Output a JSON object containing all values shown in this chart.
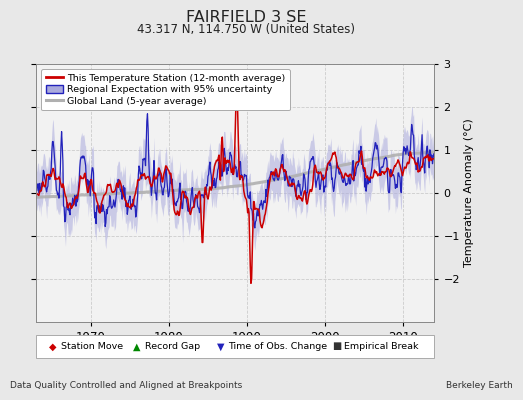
{
  "title": "FAIRFIELD 3 SE",
  "subtitle": "43.317 N, 114.750 W (United States)",
  "ylabel": "Temperature Anomaly (°C)",
  "xlabel_left": "Data Quality Controlled and Aligned at Breakpoints",
  "xlabel_right": "Berkeley Earth",
  "ylim": [
    -3,
    3
  ],
  "xlim": [
    1963,
    2014
  ],
  "xticks": [
    1970,
    1980,
    1990,
    2000,
    2010
  ],
  "yticks": [
    -2,
    -1,
    0,
    1,
    2,
    3
  ],
  "bg_color": "#e8e8e8",
  "plot_bg_color": "#f2f2f2",
  "red_color": "#cc0000",
  "blue_color": "#2222bb",
  "blue_fill_color": "#aaaadd",
  "gray_color": "#b0b0b0",
  "legend_items": [
    "This Temperature Station (12-month average)",
    "Regional Expectation with 95% uncertainty",
    "Global Land (5-year average)"
  ]
}
